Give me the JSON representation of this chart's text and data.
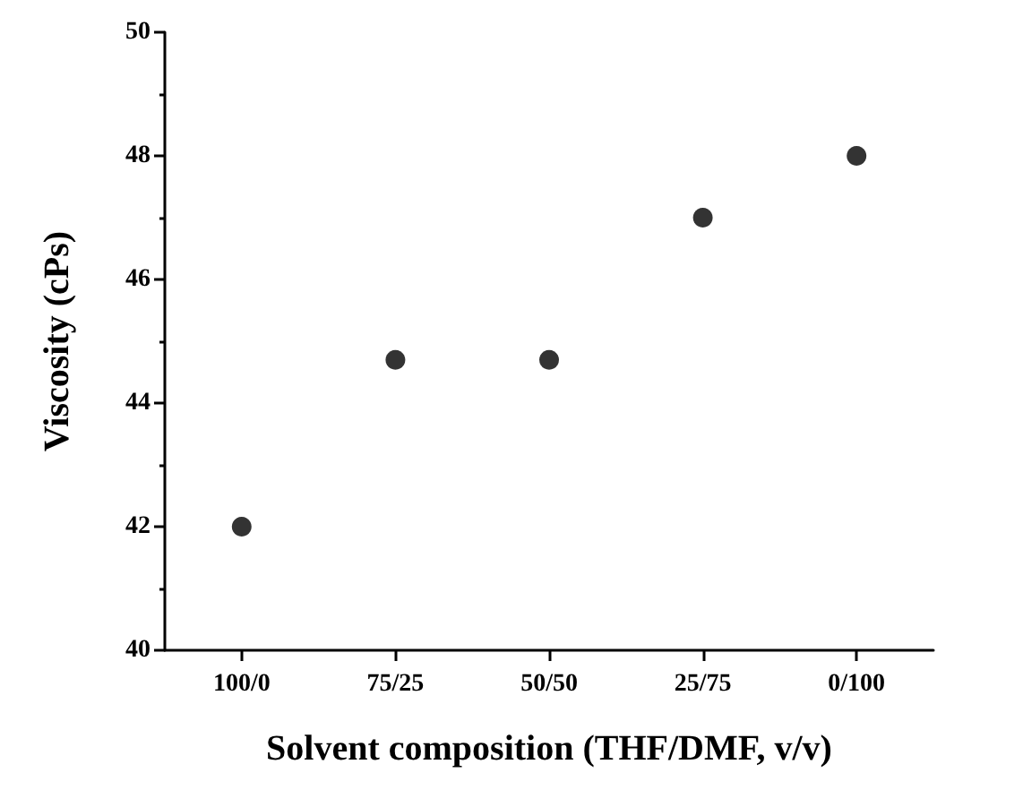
{
  "chart_data": {
    "type": "scatter",
    "xlabel": "Solvent composition (THF/DMF, v/v)",
    "ylabel": "Viscosity (cPs)",
    "categories": [
      "100/0",
      "75/25",
      "50/50",
      "25/75",
      "0/100"
    ],
    "series": [
      {
        "color": "#000000",
        "values": [
          42,
          44.7,
          44.7,
          47,
          48
        ]
      }
    ],
    "ylim": [
      40,
      50
    ],
    "yticks": [
      40,
      42,
      44,
      46,
      48,
      50
    ],
    "marker": "circle"
  }
}
